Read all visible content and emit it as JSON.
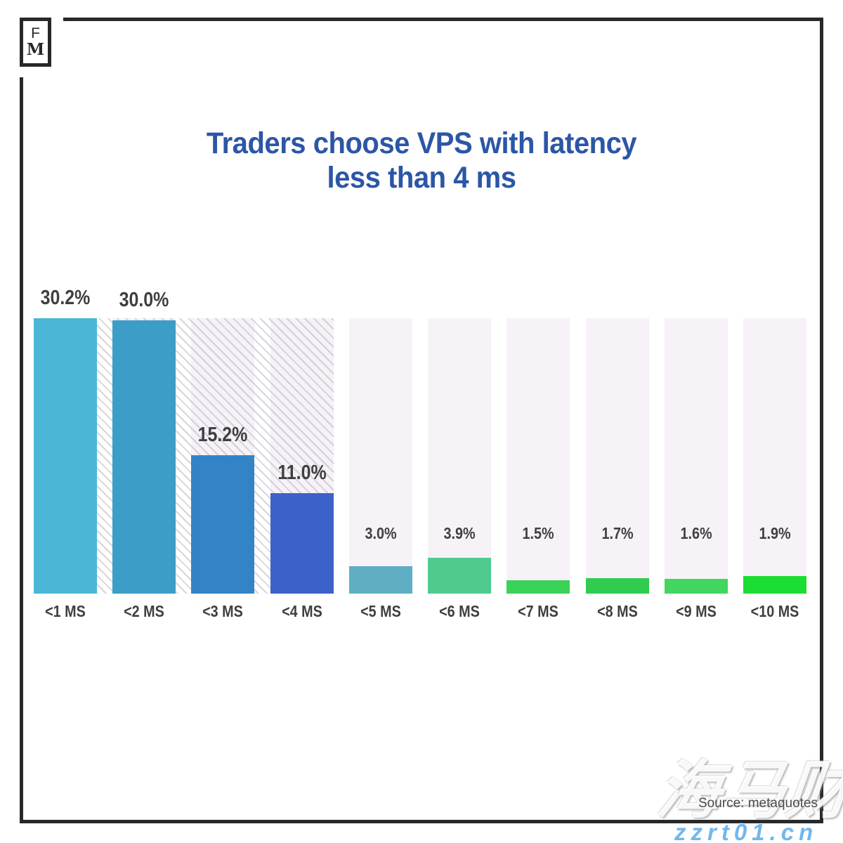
{
  "logo": {
    "letter_top": "F",
    "letter_bottom": "M"
  },
  "title": {
    "line1": "Traders choose VPS with latency",
    "line2": "less than 4 ms",
    "color": "#2C56A6"
  },
  "source_label": "Source: metaquotes",
  "watermarks": {
    "cjk_text": "海马财经",
    "url_text": "zzrt01.cn",
    "url_color": "#72B7EC"
  },
  "chart_data": {
    "type": "bar",
    "title": "Traders choose VPS with latency less than 4 ms",
    "categories": [
      "<1 MS",
      "<2 MS",
      "<3 MS",
      "<4 MS",
      "<5 MS",
      "<6 MS",
      "<7 MS",
      "<8 MS",
      "<9 MS",
      "<10 MS"
    ],
    "values": [
      30.2,
      30.0,
      15.2,
      11.0,
      3.0,
      3.9,
      1.5,
      1.7,
      1.6,
      1.9
    ],
    "value_labels": [
      "30.2%",
      "30.0%",
      "15.2%",
      "11.0%",
      "3.0%",
      "3.9%",
      "1.5%",
      "1.7%",
      "1.6%",
      "1.9%"
    ],
    "bar_colors": [
      "#4BB7D8",
      "#3C9DC7",
      "#3384C6",
      "#3B62C8",
      "#5FAEC4",
      "#4FCB8F",
      "#3AD357",
      "#2FCC4F",
      "#41D75E",
      "#1BDE33"
    ],
    "highlighted_categories": [
      "<1 MS",
      "<2 MS",
      "<3 MS",
      "<4 MS"
    ],
    "highlight_style": "diagonal-hatch",
    "column_bg_color": "#F6F2F7",
    "hatch_line_color": "#CFC8D4",
    "label_color": "#3F3F3F",
    "xlabel": "",
    "ylabel": "",
    "ylim": [
      0,
      30.2
    ],
    "grid": false,
    "legend": false
  }
}
